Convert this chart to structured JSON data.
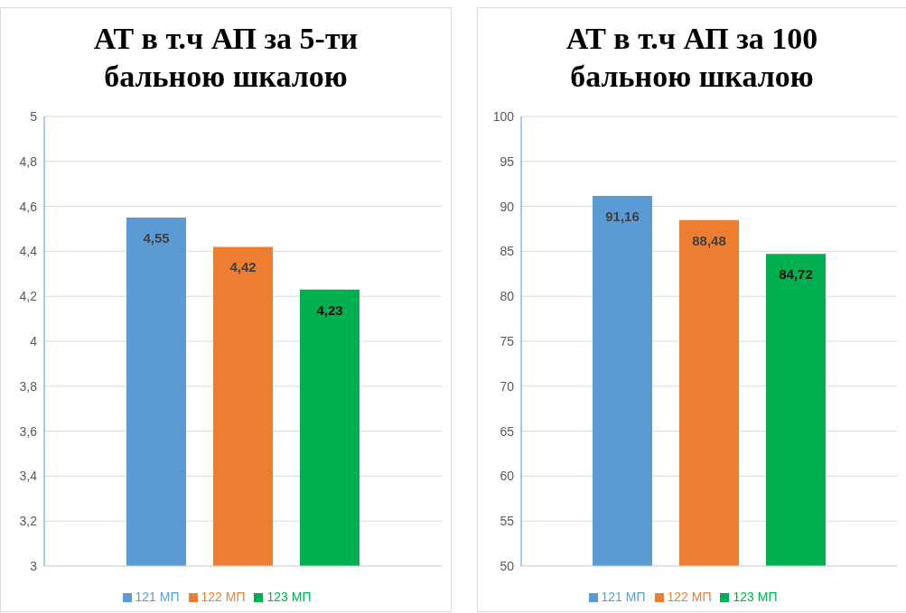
{
  "chart_data": [
    {
      "type": "bar",
      "title": "АТ в т.ч АП за 5-ти бальною шкалою",
      "categories": [
        null
      ],
      "series": [
        {
          "name": "121 МП",
          "color": "#5b9bd5",
          "values": [
            4.55
          ],
          "value_labels": [
            "4,55"
          ]
        },
        {
          "name": "122 МП",
          "color": "#ed7d31",
          "values": [
            4.42
          ],
          "value_labels": [
            "4,42"
          ]
        },
        {
          "name": "123 МП",
          "color": "#00b050",
          "values": [
            4.23
          ],
          "value_labels": [
            "4,23"
          ]
        }
      ],
      "ylim": [
        3,
        5
      ],
      "yticks": [
        3,
        {
          "value": 3.2,
          "label": "3,2"
        },
        {
          "value": 3.4,
          "label": "3,4"
        },
        {
          "value": 3.6,
          "label": "3,6"
        },
        {
          "value": 3.8,
          "label": "3,8"
        },
        4,
        {
          "value": 4.2,
          "label": "4,2"
        },
        {
          "value": 4.4,
          "label": "4,4"
        },
        {
          "value": 4.6,
          "label": "4,6"
        },
        {
          "value": 4.8,
          "label": "4,8"
        },
        5
      ],
      "grid": "y",
      "legend": "bottom"
    },
    {
      "type": "bar",
      "title": "АТ в т.ч АП за 100 бальною шкалою",
      "categories": [
        null
      ],
      "series": [
        {
          "name": "121 МП",
          "color": "#5b9bd5",
          "values": [
            91.16
          ],
          "value_labels": [
            "91,16"
          ]
        },
        {
          "name": "122 МП",
          "color": "#ed7d31",
          "values": [
            88.48
          ],
          "value_labels": [
            "88,48"
          ]
        },
        {
          "name": "123 МП",
          "color": "#00b050",
          "values": [
            84.72
          ],
          "value_labels": [
            "84,72"
          ]
        }
      ],
      "ylim": [
        50,
        100
      ],
      "yticks": [
        50,
        55,
        60,
        65,
        70,
        75,
        80,
        85,
        90,
        95,
        100
      ],
      "grid": "y",
      "legend": "bottom"
    }
  ]
}
